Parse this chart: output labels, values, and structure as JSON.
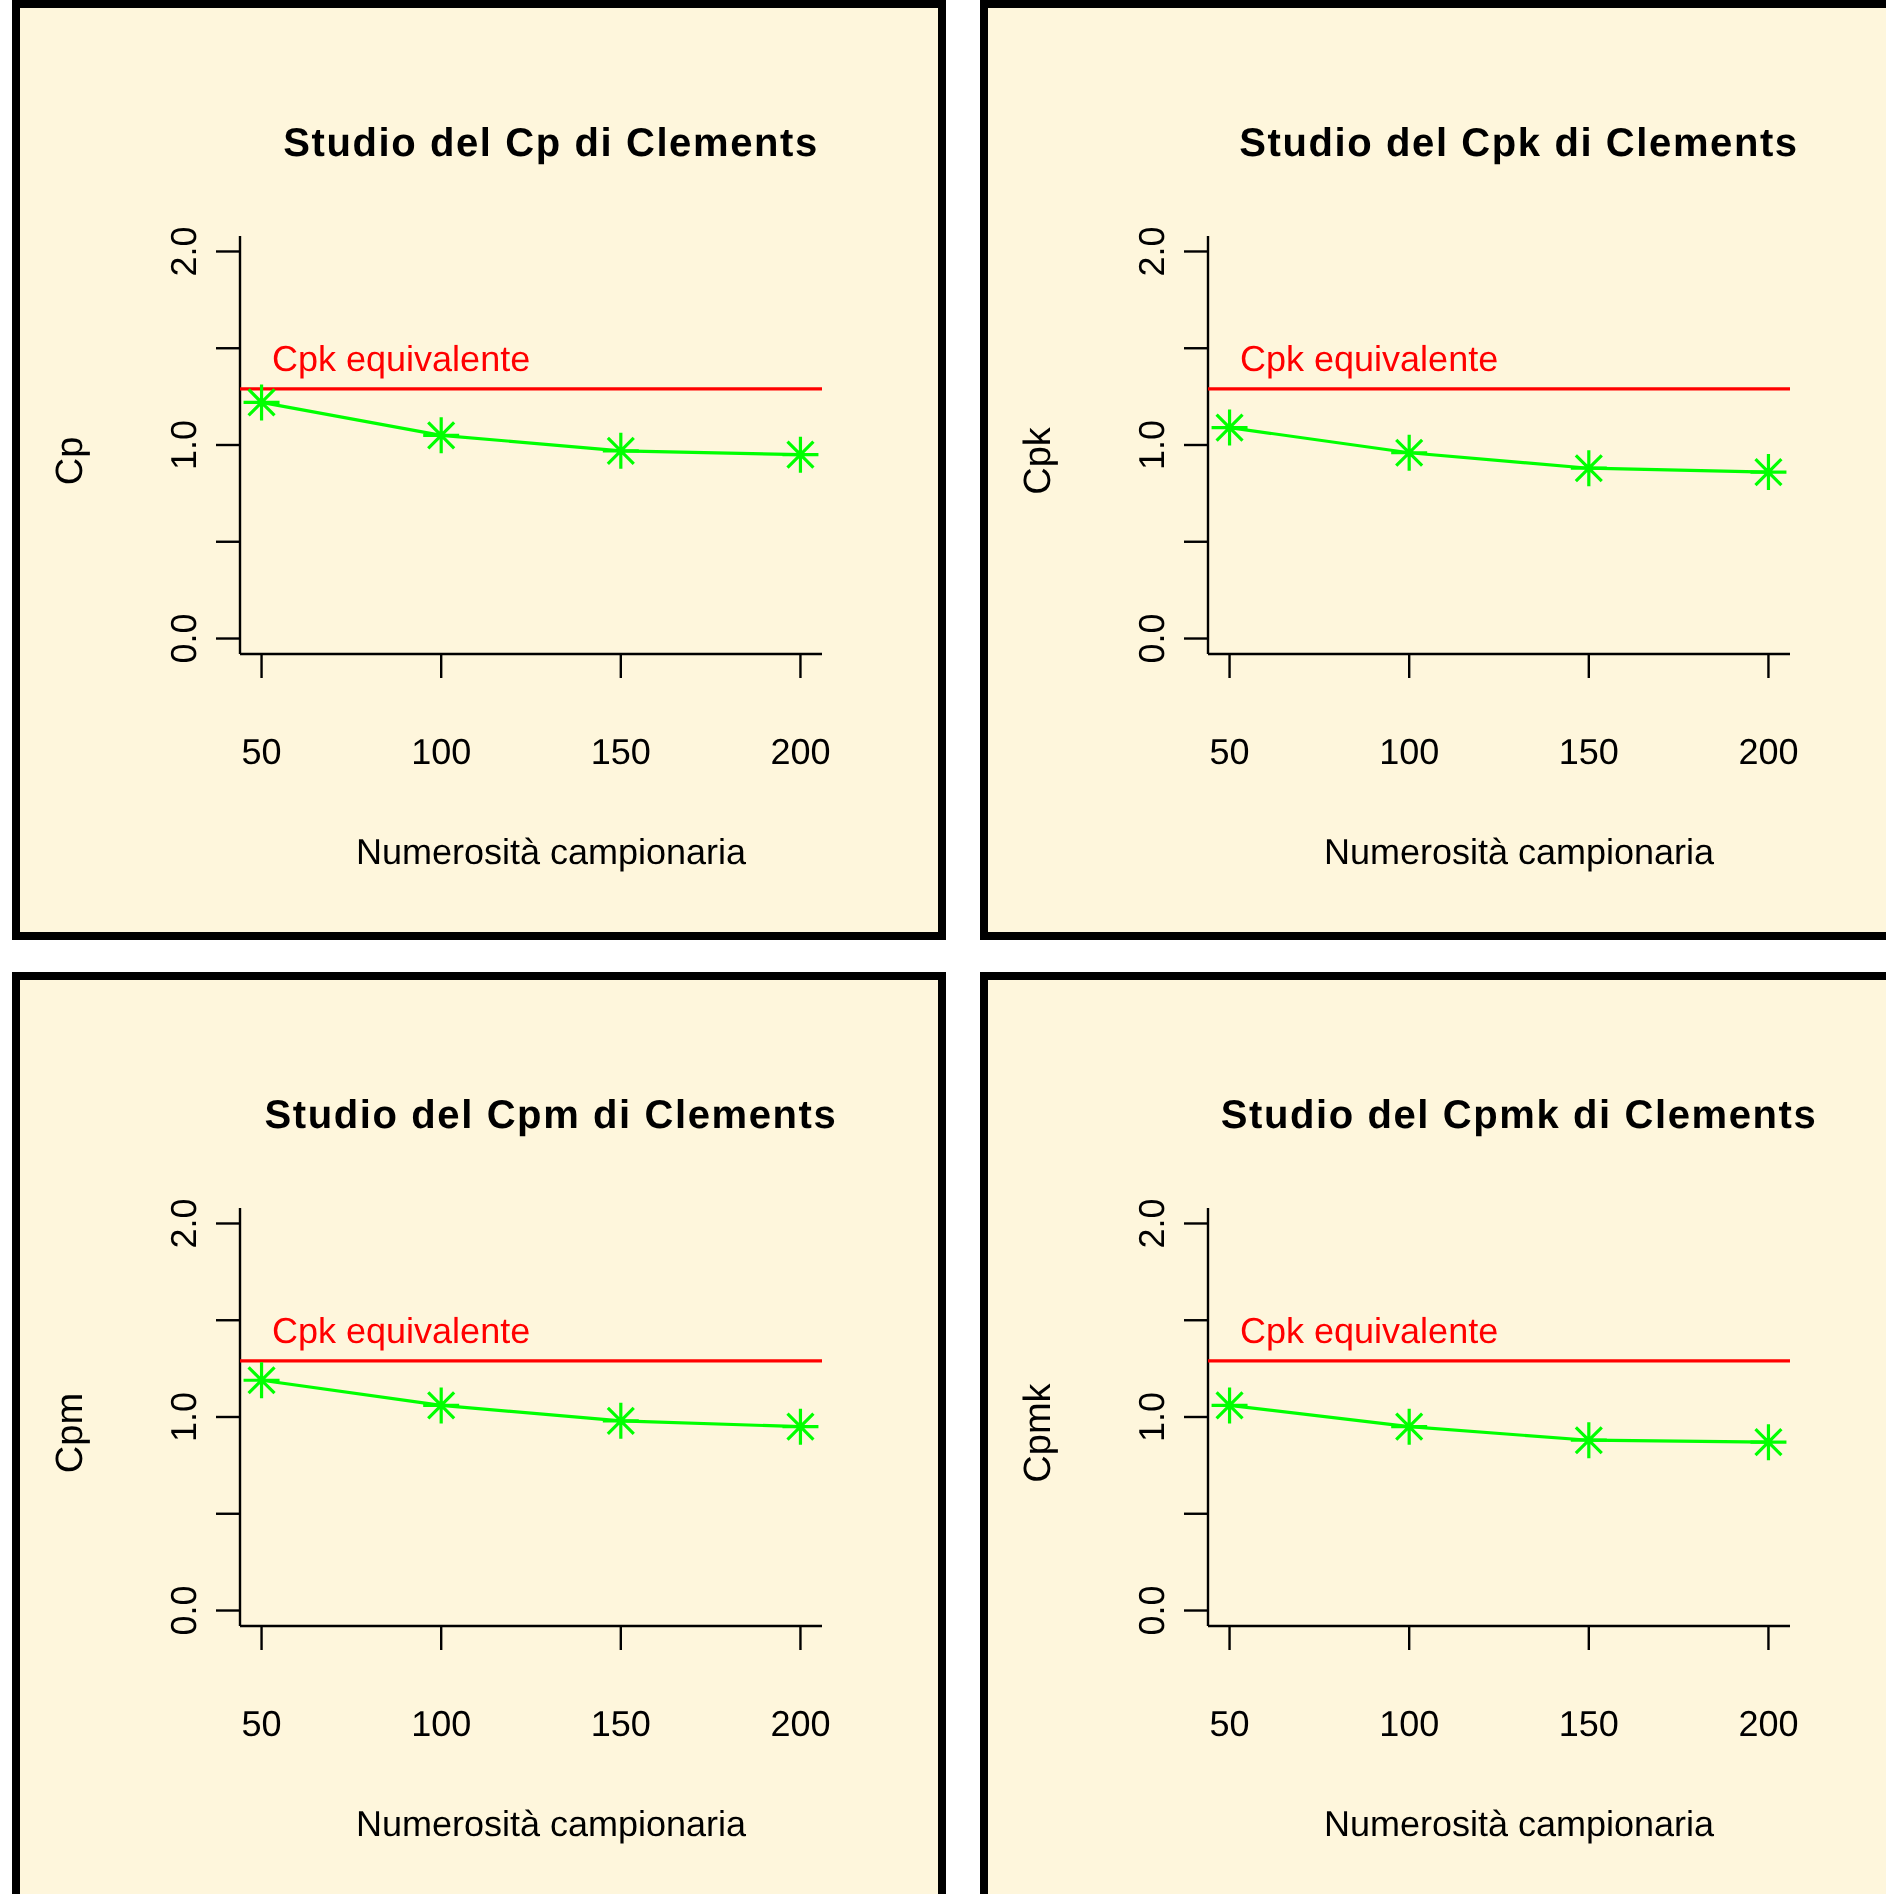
{
  "chart_data": [
    {
      "type": "line",
      "title": "Studio del Cp di Clements",
      "xlabel": "Numerosità campionaria",
      "ylabel": "Cp",
      "x": [
        50,
        100,
        150,
        200
      ],
      "series": [
        {
          "color": "#00ff00",
          "values": [
            1.22,
            1.05,
            0.97,
            0.95
          ]
        }
      ],
      "xlim": [
        44,
        206
      ],
      "ylim": [
        -0.08,
        2.08
      ],
      "xticks": [
        50,
        100,
        150,
        200
      ],
      "yticks": [
        {
          "value": 0,
          "label": "0.0"
        },
        {
          "value": 0.5,
          "label": null
        },
        {
          "value": 1,
          "label": "1.0"
        },
        {
          "value": 1.5,
          "label": null
        },
        {
          "value": 2,
          "label": "2.0"
        }
      ],
      "marker": "cross",
      "ref_lines": [
        {
          "axis": "y",
          "value": 1.29,
          "label": "Cpk equivalente",
          "color": "#ff0000"
        }
      ]
    },
    {
      "type": "line",
      "title": "Studio del Cpk di Clements",
      "xlabel": "Numerosità campionaria",
      "ylabel": "Cpk",
      "x": [
        50,
        100,
        150,
        200
      ],
      "series": [
        {
          "color": "#00ff00",
          "values": [
            1.09,
            0.96,
            0.88,
            0.86
          ]
        }
      ],
      "xlim": [
        44,
        206
      ],
      "ylim": [
        -0.08,
        2.08
      ],
      "xticks": [
        50,
        100,
        150,
        200
      ],
      "yticks": [
        {
          "value": 0,
          "label": "0.0"
        },
        {
          "value": 0.5,
          "label": null
        },
        {
          "value": 1,
          "label": "1.0"
        },
        {
          "value": 1.5,
          "label": null
        },
        {
          "value": 2,
          "label": "2.0"
        }
      ],
      "marker": "cross",
      "ref_lines": [
        {
          "axis": "y",
          "value": 1.29,
          "label": "Cpk equivalente",
          "color": "#ff0000"
        }
      ]
    },
    {
      "type": "line",
      "title": "Studio del Cpm di Clements",
      "xlabel": "Numerosità campionaria",
      "ylabel": "Cpm",
      "x": [
        50,
        100,
        150,
        200
      ],
      "series": [
        {
          "color": "#00ff00",
          "values": [
            1.19,
            1.06,
            0.98,
            0.95
          ]
        }
      ],
      "xlim": [
        44,
        206
      ],
      "ylim": [
        -0.08,
        2.08
      ],
      "xticks": [
        50,
        100,
        150,
        200
      ],
      "yticks": [
        {
          "value": 0,
          "label": "0.0"
        },
        {
          "value": 0.5,
          "label": null
        },
        {
          "value": 1,
          "label": "1.0"
        },
        {
          "value": 1.5,
          "label": null
        },
        {
          "value": 2,
          "label": "2.0"
        }
      ],
      "marker": "cross",
      "ref_lines": [
        {
          "axis": "y",
          "value": 1.29,
          "label": "Cpk equivalente",
          "color": "#ff0000"
        }
      ]
    },
    {
      "type": "line",
      "title": "Studio del Cpmk di Clements",
      "xlabel": "Numerosità campionaria",
      "ylabel": "Cpmk",
      "x": [
        50,
        100,
        150,
        200
      ],
      "series": [
        {
          "color": "#00ff00",
          "values": [
            1.06,
            0.95,
            0.88,
            0.87
          ]
        }
      ],
      "xlim": [
        44,
        206
      ],
      "ylim": [
        -0.08,
        2.08
      ],
      "xticks": [
        50,
        100,
        150,
        200
      ],
      "yticks": [
        {
          "value": 0,
          "label": "0.0"
        },
        {
          "value": 0.5,
          "label": null
        },
        {
          "value": 1,
          "label": "1.0"
        },
        {
          "value": 1.5,
          "label": null
        },
        {
          "value": 2,
          "label": "2.0"
        }
      ],
      "marker": "cross",
      "ref_lines": [
        {
          "axis": "y",
          "value": 1.29,
          "label": "Cpk equivalente",
          "color": "#ff0000"
        }
      ]
    }
  ]
}
